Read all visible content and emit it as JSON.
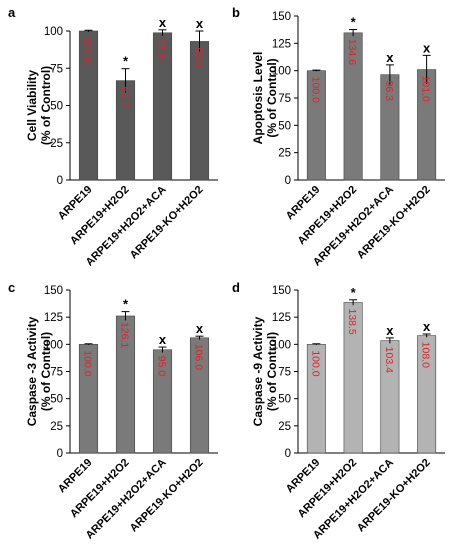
{
  "chart_data": [
    {
      "type": "bar",
      "panel": "a",
      "ylabel_line1": "Cell Viability",
      "ylabel_line2": "(% of Control)",
      "ylim": [
        0,
        100
      ],
      "yticks": [
        "0",
        "25",
        "50",
        "75",
        "100"
      ],
      "categories": [
        "ARPE19",
        "ARPE19+H2O2",
        "ARPE19+H2O2+ACA",
        "ARPE19-KO+H2O2"
      ],
      "values": [
        100.0,
        66.7,
        98.8,
        93.0
      ],
      "errors": [
        0.5,
        8.0,
        2.0,
        7.0
      ],
      "value_labels": [
        "100.0",
        "66.7",
        "98.8",
        "93.0"
      ],
      "marks": [
        "",
        "*",
        "x",
        "x"
      ],
      "bar_color": "#595959"
    },
    {
      "type": "bar",
      "panel": "b",
      "ylabel_line1": "Apoptosis Level",
      "ylabel_line2": "(% of Control)",
      "ylim": [
        0,
        150
      ],
      "yticks": [
        "0",
        "25",
        "50",
        "75",
        "100",
        "125",
        "150"
      ],
      "categories": [
        "ARPE19",
        "ARPE19+H2O2",
        "ARPE19+H2O2+ACA",
        "ARPE19-KO+H2O2"
      ],
      "values": [
        100.0,
        134.6,
        96.3,
        101.0
      ],
      "errors": [
        0.5,
        3.0,
        9.0,
        13.0
      ],
      "value_labels": [
        "100.0",
        "134.6",
        "96.3",
        "101.0"
      ],
      "marks": [
        "",
        "*",
        "x",
        "x"
      ],
      "bar_color": "#7a7a7a"
    },
    {
      "type": "bar",
      "panel": "c",
      "ylabel_line1": "Caspase -3 Activity",
      "ylabel_line2": "(% of Control)",
      "ylim": [
        0,
        150
      ],
      "yticks": [
        "0",
        "25",
        "50",
        "75",
        "100",
        "125",
        "150"
      ],
      "categories": [
        "ARPE19",
        "ARPE19+H2O2",
        "ARPE19+H2O2+ACA",
        "ARPE19-KO+H2O2"
      ],
      "values": [
        100.0,
        126.1,
        95.0,
        106.0
      ],
      "errors": [
        0.5,
        4.0,
        2.5,
        1.5
      ],
      "value_labels": [
        "100.0",
        "126.1",
        "95.0",
        "106.0"
      ],
      "marks": [
        "",
        "*",
        "x",
        "x"
      ],
      "bar_color": "#7a7a7a"
    },
    {
      "type": "bar",
      "panel": "d",
      "ylabel_line1": "Caspase -9 Activity",
      "ylabel_line2": "(% of Control)",
      "ylim": [
        0,
        150
      ],
      "yticks": [
        "0",
        "25",
        "50",
        "75",
        "100",
        "125",
        "150"
      ],
      "categories": [
        "ARPE19",
        "ARPE19+H2O2",
        "ARPE19+H2O2+ACA",
        "ARPE19-KO+H2O2"
      ],
      "values": [
        100.0,
        138.5,
        103.4,
        108.0
      ],
      "errors": [
        0.5,
        2.5,
        2.5,
        1.5
      ],
      "value_labels": [
        "100.0",
        "138.5",
        "103.4",
        "108.0"
      ],
      "marks": [
        "",
        "*",
        "x",
        "x"
      ],
      "bar_color": "#b3b3b3"
    }
  ]
}
